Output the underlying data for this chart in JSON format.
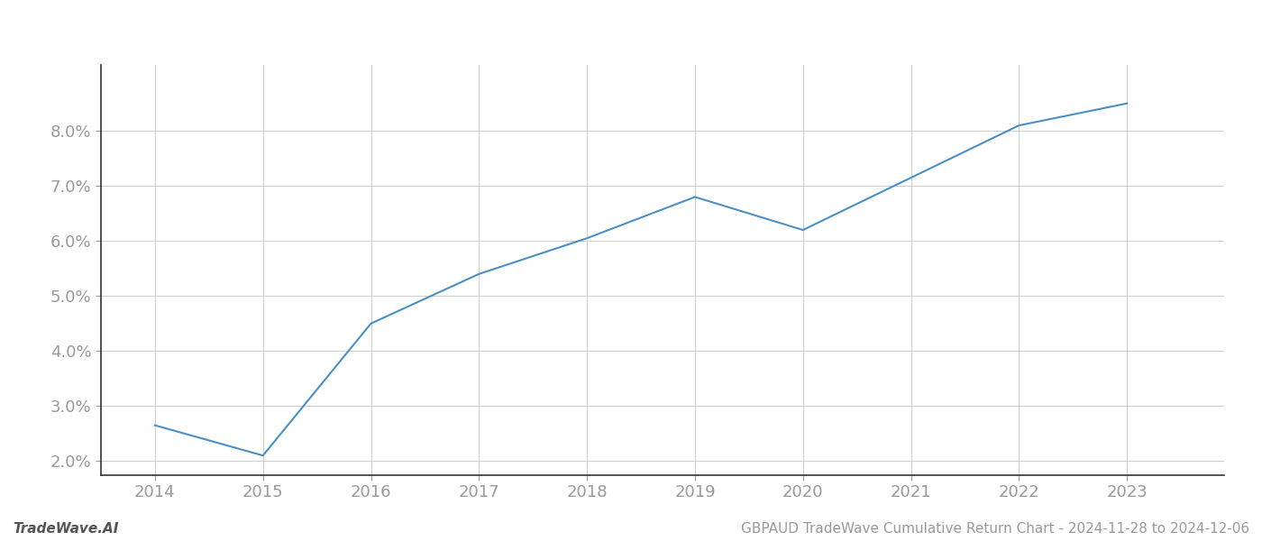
{
  "x": [
    2014,
    2015,
    2016,
    2017,
    2018,
    2019,
    2020,
    2021,
    2022,
    2023
  ],
  "y": [
    2.65,
    2.1,
    4.5,
    5.4,
    6.05,
    6.8,
    6.2,
    7.15,
    8.1,
    8.5
  ],
  "line_color": "#4a90c4",
  "line_width": 1.5,
  "background_color": "#ffffff",
  "grid_color": "#cccccc",
  "footer_left": "TradeWave.AI",
  "footer_right": "GBPAUD TradeWave Cumulative Return Chart - 2024-11-28 to 2024-12-06",
  "ylim": [
    1.75,
    9.2
  ],
  "xlim": [
    2013.5,
    2023.9
  ],
  "ytick_labels": [
    "2.0%",
    "3.0%",
    "4.0%",
    "5.0%",
    "6.0%",
    "7.0%",
    "8.0%"
  ],
  "ytick_values": [
    2.0,
    3.0,
    4.0,
    5.0,
    6.0,
    7.0,
    8.0
  ],
  "xtick_values": [
    2014,
    2015,
    2016,
    2017,
    2018,
    2019,
    2020,
    2021,
    2022,
    2023
  ],
  "tick_fontsize": 13,
  "footer_fontsize": 11,
  "tick_color": "#999999",
  "spine_color": "#333333",
  "left_spine_color": "#333333"
}
